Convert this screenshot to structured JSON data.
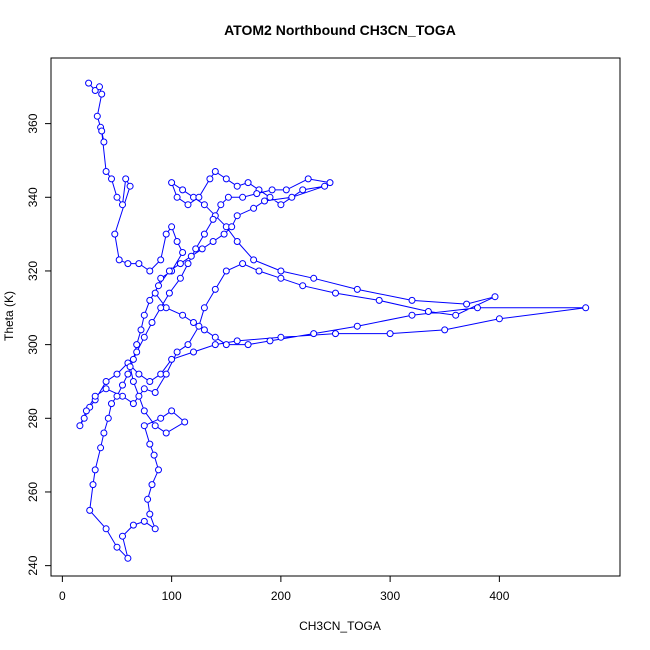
{
  "chart_data": {
    "type": "scatter",
    "title": "ATOM2 Northbound CH3CN_TOGA",
    "xlabel": "CH3CN_TOGA",
    "ylabel": "Theta (K)",
    "xlim": [
      0,
      500
    ],
    "ylim": [
      240,
      375
    ],
    "xticks": [
      0,
      100,
      200,
      300,
      400
    ],
    "yticks": [
      240,
      260,
      280,
      300,
      320,
      340,
      360
    ],
    "series": [
      {
        "color": "#0000ff",
        "marker": "open-circle",
        "connected": true,
        "points": [
          [
            24,
            371
          ],
          [
            30,
            369
          ],
          [
            34,
            370
          ],
          [
            36,
            368
          ],
          [
            32,
            362
          ],
          [
            35,
            359
          ],
          [
            38,
            355
          ],
          [
            36,
            358
          ],
          [
            40,
            347
          ],
          [
            45,
            345
          ],
          [
            50,
            340
          ],
          [
            55,
            338
          ],
          [
            58,
            345
          ],
          [
            62,
            343
          ],
          [
            48,
            330
          ],
          [
            52,
            323
          ],
          [
            60,
            322
          ],
          [
            70,
            322
          ],
          [
            80,
            320
          ],
          [
            90,
            323
          ],
          [
            95,
            330
          ],
          [
            100,
            332
          ],
          [
            105,
            328
          ],
          [
            110,
            325
          ],
          [
            100,
            320
          ],
          [
            90,
            318
          ],
          [
            85,
            314
          ],
          [
            95,
            310
          ],
          [
            110,
            308
          ],
          [
            120,
            306
          ],
          [
            130,
            304
          ],
          [
            140,
            302
          ],
          [
            150,
            300
          ],
          [
            170,
            300
          ],
          [
            190,
            301
          ],
          [
            230,
            303
          ],
          [
            270,
            305
          ],
          [
            320,
            308
          ],
          [
            380,
            310
          ],
          [
            479,
            310
          ],
          [
            400,
            307
          ],
          [
            350,
            304
          ],
          [
            300,
            303
          ],
          [
            250,
            303
          ],
          [
            200,
            302
          ],
          [
            160,
            301
          ],
          [
            140,
            300
          ],
          [
            120,
            298
          ],
          [
            100,
            296
          ],
          [
            90,
            292
          ],
          [
            80,
            290
          ],
          [
            70,
            292
          ],
          [
            60,
            295
          ],
          [
            50,
            292
          ],
          [
            40,
            290
          ],
          [
            30,
            285
          ],
          [
            25,
            283
          ],
          [
            20,
            280
          ],
          [
            16,
            278
          ],
          [
            22,
            282
          ],
          [
            30,
            286
          ],
          [
            40,
            288
          ],
          [
            55,
            286
          ],
          [
            65,
            284
          ],
          [
            75,
            288
          ],
          [
            85,
            287
          ],
          [
            95,
            292
          ],
          [
            105,
            298
          ],
          [
            115,
            300
          ],
          [
            125,
            305
          ],
          [
            130,
            310
          ],
          [
            140,
            315
          ],
          [
            150,
            320
          ],
          [
            165,
            322
          ],
          [
            180,
            320
          ],
          [
            200,
            318
          ],
          [
            220,
            316
          ],
          [
            250,
            314
          ],
          [
            290,
            312
          ],
          [
            335,
            309
          ],
          [
            360,
            308
          ],
          [
            396,
            313
          ],
          [
            370,
            311
          ],
          [
            320,
            312
          ],
          [
            270,
            315
          ],
          [
            230,
            318
          ],
          [
            200,
            320
          ],
          [
            175,
            323
          ],
          [
            160,
            328
          ],
          [
            150,
            332
          ],
          [
            140,
            335
          ],
          [
            130,
            338
          ],
          [
            120,
            340
          ],
          [
            110,
            342
          ],
          [
            100,
            344
          ],
          [
            105,
            340
          ],
          [
            115,
            338
          ],
          [
            125,
            340
          ],
          [
            135,
            345
          ],
          [
            140,
            347
          ],
          [
            150,
            345
          ],
          [
            160,
            343
          ],
          [
            170,
            344
          ],
          [
            180,
            342
          ],
          [
            190,
            340
          ],
          [
            200,
            338
          ],
          [
            220,
            342
          ],
          [
            240,
            343
          ],
          [
            210,
            340
          ],
          [
            185,
            339
          ],
          [
            175,
            337
          ],
          [
            160,
            335
          ],
          [
            155,
            332
          ],
          [
            148,
            330
          ],
          [
            138,
            328
          ],
          [
            128,
            326
          ],
          [
            118,
            324
          ],
          [
            108,
            322
          ],
          [
            98,
            320
          ],
          [
            88,
            316
          ],
          [
            80,
            312
          ],
          [
            75,
            308
          ],
          [
            72,
            304
          ],
          [
            68,
            300
          ],
          [
            65,
            296
          ],
          [
            60,
            292
          ],
          [
            55,
            289
          ],
          [
            50,
            286
          ],
          [
            45,
            284
          ],
          [
            42,
            280
          ],
          [
            38,
            276
          ],
          [
            35,
            272
          ],
          [
            30,
            266
          ],
          [
            28,
            262
          ],
          [
            25,
            255
          ],
          [
            40,
            250
          ],
          [
            50,
            245
          ],
          [
            60,
            242
          ],
          [
            55,
            248
          ],
          [
            65,
            251
          ],
          [
            75,
            252
          ],
          [
            85,
            250
          ],
          [
            80,
            254
          ],
          [
            78,
            258
          ],
          [
            82,
            262
          ],
          [
            88,
            266
          ],
          [
            84,
            270
          ],
          [
            80,
            273
          ],
          [
            75,
            278
          ],
          [
            90,
            280
          ],
          [
            100,
            282
          ],
          [
            112,
            279
          ],
          [
            95,
            276
          ],
          [
            85,
            278
          ],
          [
            75,
            282
          ],
          [
            70,
            286
          ],
          [
            65,
            290
          ],
          [
            62,
            294
          ],
          [
            68,
            298
          ],
          [
            75,
            302
          ],
          [
            82,
            306
          ],
          [
            90,
            310
          ],
          [
            98,
            314
          ],
          [
            108,
            318
          ],
          [
            115,
            322
          ],
          [
            122,
            326
          ],
          [
            130,
            330
          ],
          [
            138,
            334
          ],
          [
            145,
            338
          ],
          [
            152,
            340
          ],
          [
            165,
            340
          ],
          [
            178,
            341
          ],
          [
            192,
            342
          ],
          [
            205,
            342
          ],
          [
            225,
            345
          ],
          [
            245,
            344
          ]
        ]
      }
    ]
  }
}
